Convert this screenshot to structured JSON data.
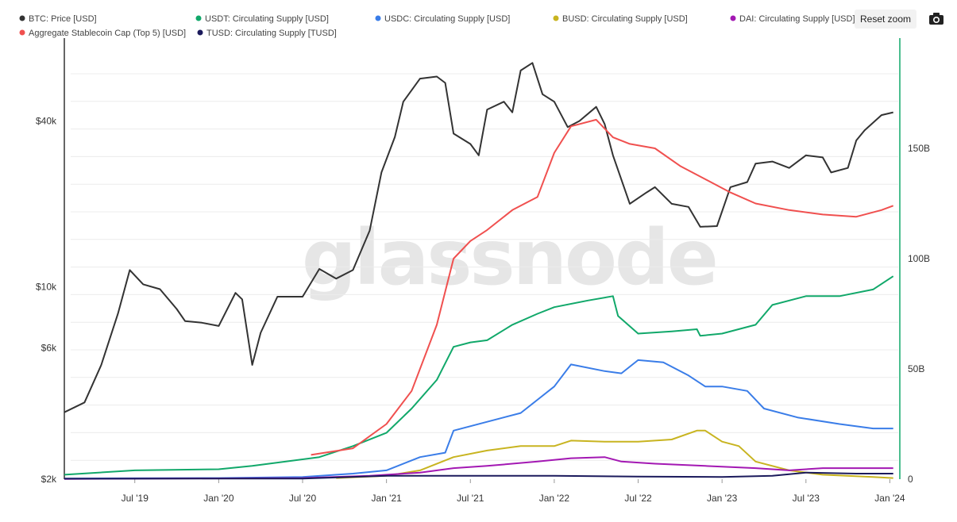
{
  "legend": [
    {
      "label": "BTC: Price [USD]",
      "color": "#333333"
    },
    {
      "label": "USDT: Circulating Supply [USD]",
      "color": "#11a86a"
    },
    {
      "label": "USDC: Circulating Supply [USD]",
      "color": "#3a7de8"
    },
    {
      "label": "BUSD: Circulating Supply [USD]",
      "color": "#c8b420"
    },
    {
      "label": "DAI: Circulating Supply [USD]",
      "color": "#a318b3"
    },
    {
      "label": "Aggregate Stablecoin Cap (Top 5) [USD]",
      "color": "#f0504f"
    },
    {
      "label": "TUSD: Circulating Supply [TUSD]",
      "color": "#1b1a5c"
    }
  ],
  "toolbar": {
    "reset_zoom": "Reset zoom",
    "camera_icon": "camera-icon"
  },
  "watermark": "glassnode",
  "chart_data": {
    "type": "line",
    "x_range": [
      "2019-02",
      "2024-01"
    ],
    "x_ticks": [
      "Jul '19",
      "Jan '20",
      "Jul '20",
      "Jan '21",
      "Jul '21",
      "Jan '22",
      "Jul '22",
      "Jan '23",
      "Jul '23",
      "Jan '24"
    ],
    "y_left": {
      "scale": "log",
      "ticks": [
        "$2k",
        "$6k",
        "$10k",
        "$40k"
      ],
      "tick_values": [
        2000,
        6000,
        10000,
        40000
      ],
      "range": [
        2000,
        80000
      ]
    },
    "y_right": {
      "scale": "linear",
      "ticks": [
        "0",
        "50B",
        "100B",
        "150B"
      ],
      "tick_values": [
        0,
        50,
        100,
        150
      ],
      "range": [
        0,
        200
      ],
      "unit": "B USD"
    },
    "series": [
      {
        "name": "BTC: Price [USD]",
        "axis": "left",
        "color": "#333333",
        "points": [
          [
            2019.08,
            3500
          ],
          [
            2019.2,
            3800
          ],
          [
            2019.3,
            5200
          ],
          [
            2019.4,
            8000
          ],
          [
            2019.47,
            11500
          ],
          [
            2019.55,
            10200
          ],
          [
            2019.65,
            9800
          ],
          [
            2019.75,
            8300
          ],
          [
            2019.8,
            7500
          ],
          [
            2019.9,
            7400
          ],
          [
            2020.0,
            7200
          ],
          [
            2020.1,
            9500
          ],
          [
            2020.14,
            9000
          ],
          [
            2020.2,
            5200
          ],
          [
            2020.25,
            6800
          ],
          [
            2020.35,
            9200
          ],
          [
            2020.5,
            9200
          ],
          [
            2020.6,
            11600
          ],
          [
            2020.7,
            10700
          ],
          [
            2020.8,
            11500
          ],
          [
            2020.9,
            16000
          ],
          [
            2020.97,
            26000
          ],
          [
            2021.05,
            35000
          ],
          [
            2021.1,
            47000
          ],
          [
            2021.2,
            57000
          ],
          [
            2021.3,
            58000
          ],
          [
            2021.35,
            55000
          ],
          [
            2021.4,
            36000
          ],
          [
            2021.5,
            33000
          ],
          [
            2021.55,
            30000
          ],
          [
            2021.6,
            44000
          ],
          [
            2021.7,
            47000
          ],
          [
            2021.75,
            43000
          ],
          [
            2021.8,
            61000
          ],
          [
            2021.87,
            65000
          ],
          [
            2021.93,
            50000
          ],
          [
            2022.0,
            47000
          ],
          [
            2022.08,
            38000
          ],
          [
            2022.15,
            40000
          ],
          [
            2022.25,
            45000
          ],
          [
            2022.3,
            39000
          ],
          [
            2022.35,
            30000
          ],
          [
            2022.45,
            20000
          ],
          [
            2022.55,
            22000
          ],
          [
            2022.6,
            23000
          ],
          [
            2022.7,
            20000
          ],
          [
            2022.8,
            19500
          ],
          [
            2022.87,
            16500
          ],
          [
            2022.97,
            16600
          ],
          [
            2023.05,
            23000
          ],
          [
            2023.15,
            24000
          ],
          [
            2023.2,
            28000
          ],
          [
            2023.3,
            28500
          ],
          [
            2023.4,
            27000
          ],
          [
            2023.5,
            30000
          ],
          [
            2023.6,
            29500
          ],
          [
            2023.65,
            26000
          ],
          [
            2023.75,
            27000
          ],
          [
            2023.8,
            34000
          ],
          [
            2023.85,
            37000
          ],
          [
            2023.95,
            42000
          ],
          [
            2024.02,
            43000
          ]
        ]
      },
      {
        "name": "USDT: Circulating Supply [USD]",
        "axis": "right",
        "color": "#11a86a",
        "points": [
          [
            2019.08,
            2
          ],
          [
            2019.5,
            4
          ],
          [
            2020.0,
            4.5
          ],
          [
            2020.2,
            6
          ],
          [
            2020.4,
            8
          ],
          [
            2020.6,
            10
          ],
          [
            2020.8,
            15
          ],
          [
            2021.0,
            21
          ],
          [
            2021.15,
            32
          ],
          [
            2021.3,
            45
          ],
          [
            2021.4,
            60
          ],
          [
            2021.5,
            62
          ],
          [
            2021.6,
            63
          ],
          [
            2021.75,
            70
          ],
          [
            2021.9,
            75
          ],
          [
            2022.0,
            78
          ],
          [
            2022.2,
            81
          ],
          [
            2022.35,
            83
          ],
          [
            2022.38,
            74
          ],
          [
            2022.5,
            66
          ],
          [
            2022.7,
            67
          ],
          [
            2022.85,
            68
          ],
          [
            2022.87,
            65
          ],
          [
            2023.0,
            66
          ],
          [
            2023.2,
            70
          ],
          [
            2023.3,
            79
          ],
          [
            2023.5,
            83
          ],
          [
            2023.7,
            83
          ],
          [
            2023.9,
            86
          ],
          [
            2024.02,
            92
          ]
        ]
      },
      {
        "name": "USDC: Circulating Supply [USD]",
        "axis": "right",
        "color": "#3a7de8",
        "points": [
          [
            2019.08,
            0.3
          ],
          [
            2020.0,
            0.5
          ],
          [
            2020.5,
            1
          ],
          [
            2020.8,
            2.5
          ],
          [
            2021.0,
            4
          ],
          [
            2021.2,
            10
          ],
          [
            2021.35,
            12
          ],
          [
            2021.4,
            22
          ],
          [
            2021.6,
            26
          ],
          [
            2021.8,
            30
          ],
          [
            2021.9,
            36
          ],
          [
            2022.0,
            42
          ],
          [
            2022.1,
            52
          ],
          [
            2022.3,
            49
          ],
          [
            2022.4,
            48
          ],
          [
            2022.5,
            54
          ],
          [
            2022.65,
            53
          ],
          [
            2022.8,
            47
          ],
          [
            2022.9,
            42
          ],
          [
            2023.0,
            42
          ],
          [
            2023.15,
            40
          ],
          [
            2023.25,
            32
          ],
          [
            2023.45,
            28
          ],
          [
            2023.7,
            25
          ],
          [
            2023.9,
            23
          ],
          [
            2024.02,
            23
          ]
        ]
      },
      {
        "name": "BUSD: Circulating Supply [USD]",
        "axis": "right",
        "color": "#c8b420",
        "points": [
          [
            2020.7,
            0.5
          ],
          [
            2021.0,
            1.5
          ],
          [
            2021.2,
            4
          ],
          [
            2021.4,
            10
          ],
          [
            2021.6,
            13
          ],
          [
            2021.8,
            15
          ],
          [
            2022.0,
            15
          ],
          [
            2022.1,
            17.5
          ],
          [
            2022.3,
            17
          ],
          [
            2022.5,
            17
          ],
          [
            2022.7,
            18
          ],
          [
            2022.85,
            22
          ],
          [
            2022.9,
            22
          ],
          [
            2023.0,
            17
          ],
          [
            2023.1,
            15
          ],
          [
            2023.2,
            8
          ],
          [
            2023.4,
            4
          ],
          [
            2023.6,
            2
          ],
          [
            2023.9,
            1
          ],
          [
            2024.02,
            0.5
          ]
        ]
      },
      {
        "name": "DAI: Circulating Supply [USD]",
        "axis": "right",
        "color": "#a318b3",
        "points": [
          [
            2019.08,
            0.1
          ],
          [
            2020.5,
            0.5
          ],
          [
            2020.9,
            1.5
          ],
          [
            2021.2,
            3
          ],
          [
            2021.4,
            5
          ],
          [
            2021.6,
            6
          ],
          [
            2021.9,
            8
          ],
          [
            2022.1,
            9.5
          ],
          [
            2022.3,
            10
          ],
          [
            2022.4,
            8
          ],
          [
            2022.6,
            7
          ],
          [
            2022.9,
            6
          ],
          [
            2023.2,
            5
          ],
          [
            2023.4,
            4
          ],
          [
            2023.6,
            5
          ],
          [
            2023.8,
            5
          ],
          [
            2024.02,
            5
          ]
        ]
      },
      {
        "name": "Aggregate Stablecoin Cap (Top 5) [USD]",
        "axis": "right",
        "color": "#f0504f",
        "points": [
          [
            2020.55,
            11
          ],
          [
            2020.8,
            14
          ],
          [
            2021.0,
            25
          ],
          [
            2021.15,
            40
          ],
          [
            2021.3,
            70
          ],
          [
            2021.4,
            100
          ],
          [
            2021.5,
            108
          ],
          [
            2021.6,
            113
          ],
          [
            2021.75,
            122
          ],
          [
            2021.9,
            128
          ],
          [
            2022.0,
            148
          ],
          [
            2022.1,
            160
          ],
          [
            2022.25,
            163
          ],
          [
            2022.35,
            155
          ],
          [
            2022.45,
            152
          ],
          [
            2022.6,
            150
          ],
          [
            2022.75,
            142
          ],
          [
            2022.9,
            136
          ],
          [
            2023.05,
            130
          ],
          [
            2023.2,
            125
          ],
          [
            2023.4,
            122
          ],
          [
            2023.6,
            120
          ],
          [
            2023.8,
            119
          ],
          [
            2023.95,
            122
          ],
          [
            2024.02,
            124
          ]
        ]
      },
      {
        "name": "TUSD: Circulating Supply [TUSD]",
        "axis": "right",
        "color": "#1b1a5c",
        "points": [
          [
            2019.08,
            0.2
          ],
          [
            2020.5,
            0.3
          ],
          [
            2021.0,
            1.5
          ],
          [
            2021.5,
            1.5
          ],
          [
            2022.0,
            1.5
          ],
          [
            2022.5,
            1.2
          ],
          [
            2023.0,
            1
          ],
          [
            2023.3,
            1.5
          ],
          [
            2023.5,
            3
          ],
          [
            2023.8,
            2.5
          ],
          [
            2024.02,
            2.5
          ]
        ]
      }
    ]
  }
}
